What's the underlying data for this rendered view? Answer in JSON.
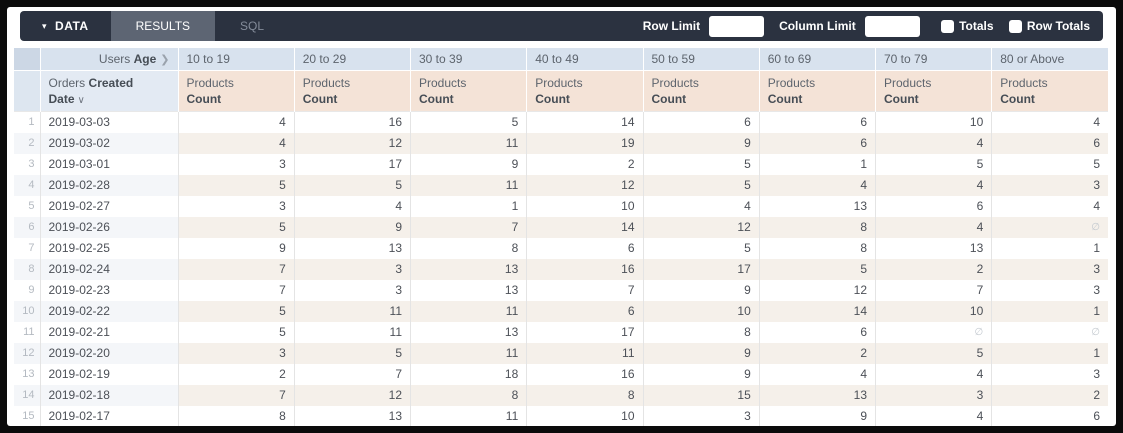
{
  "toolbar": {
    "data_tab": "DATA",
    "results_tab": "RESULTS",
    "sql_tab": "SQL",
    "row_limit_label": "Row Limit",
    "row_limit_value": "",
    "column_limit_label": "Column Limit",
    "column_limit_value": "",
    "totals_label": "Totals",
    "totals_checked": false,
    "row_totals_label": "Row Totals",
    "row_totals_checked": false
  },
  "table": {
    "pivot_field": {
      "entity": "Users",
      "field": "Age"
    },
    "pivot_values": [
      "10 to 19",
      "20 to 29",
      "30 to 39",
      "40 to 49",
      "50 to 59",
      "60 to 69",
      "70 to 79",
      "80 or Above"
    ],
    "dimension": {
      "entity": "Orders",
      "field": "Created Date"
    },
    "measure": {
      "entity": "Products",
      "field": "Count"
    },
    "null_symbol": "∅",
    "rows": [
      {
        "num": 1,
        "date": "2019-03-03",
        "values": [
          4,
          16,
          5,
          14,
          6,
          6,
          10,
          4
        ]
      },
      {
        "num": 2,
        "date": "2019-03-02",
        "values": [
          4,
          12,
          11,
          19,
          9,
          6,
          4,
          6
        ]
      },
      {
        "num": 3,
        "date": "2019-03-01",
        "values": [
          3,
          17,
          9,
          2,
          5,
          1,
          5,
          5
        ]
      },
      {
        "num": 4,
        "date": "2019-02-28",
        "values": [
          5,
          5,
          11,
          12,
          5,
          4,
          4,
          3
        ]
      },
      {
        "num": 5,
        "date": "2019-02-27",
        "values": [
          3,
          4,
          1,
          10,
          4,
          13,
          6,
          4
        ]
      },
      {
        "num": 6,
        "date": "2019-02-26",
        "values": [
          5,
          9,
          7,
          14,
          12,
          8,
          4,
          null
        ]
      },
      {
        "num": 7,
        "date": "2019-02-25",
        "values": [
          9,
          13,
          8,
          6,
          5,
          8,
          13,
          1
        ]
      },
      {
        "num": 8,
        "date": "2019-02-24",
        "values": [
          7,
          3,
          13,
          16,
          17,
          5,
          2,
          3
        ]
      },
      {
        "num": 9,
        "date": "2019-02-23",
        "values": [
          7,
          3,
          13,
          7,
          9,
          12,
          7,
          3
        ]
      },
      {
        "num": 10,
        "date": "2019-02-22",
        "values": [
          5,
          11,
          11,
          6,
          10,
          14,
          10,
          1
        ]
      },
      {
        "num": 11,
        "date": "2019-02-21",
        "values": [
          5,
          11,
          13,
          17,
          8,
          6,
          null,
          null
        ]
      },
      {
        "num": 12,
        "date": "2019-02-20",
        "values": [
          3,
          5,
          11,
          11,
          9,
          2,
          5,
          1
        ]
      },
      {
        "num": 13,
        "date": "2019-02-19",
        "values": [
          2,
          7,
          18,
          16,
          9,
          4,
          4,
          3
        ]
      },
      {
        "num": 14,
        "date": "2019-02-18",
        "values": [
          7,
          12,
          8,
          8,
          15,
          13,
          3,
          2
        ]
      },
      {
        "num": 15,
        "date": "2019-02-17",
        "values": [
          8,
          13,
          11,
          10,
          3,
          9,
          4,
          6
        ]
      }
    ]
  },
  "colors": {
    "toolbar-bg": "#2b3240",
    "tab-active-bg": "#5d6573",
    "tab-inactive-text": "#848c9a",
    "hdr-blue": "#d8e2ee",
    "hdr-blue2": "#e3eaf3",
    "hdr-gutter": "#ccd7e5",
    "hdr-gutter2": "#dde6f0",
    "hdr-peach": "#f4e3d7",
    "stripe-blue": "#f4f6f9",
    "stripe-peach": "#f5f0ea",
    "border": "#e4e4e4",
    "text": "#4c5057",
    "text-muted": "#b4bac1"
  }
}
